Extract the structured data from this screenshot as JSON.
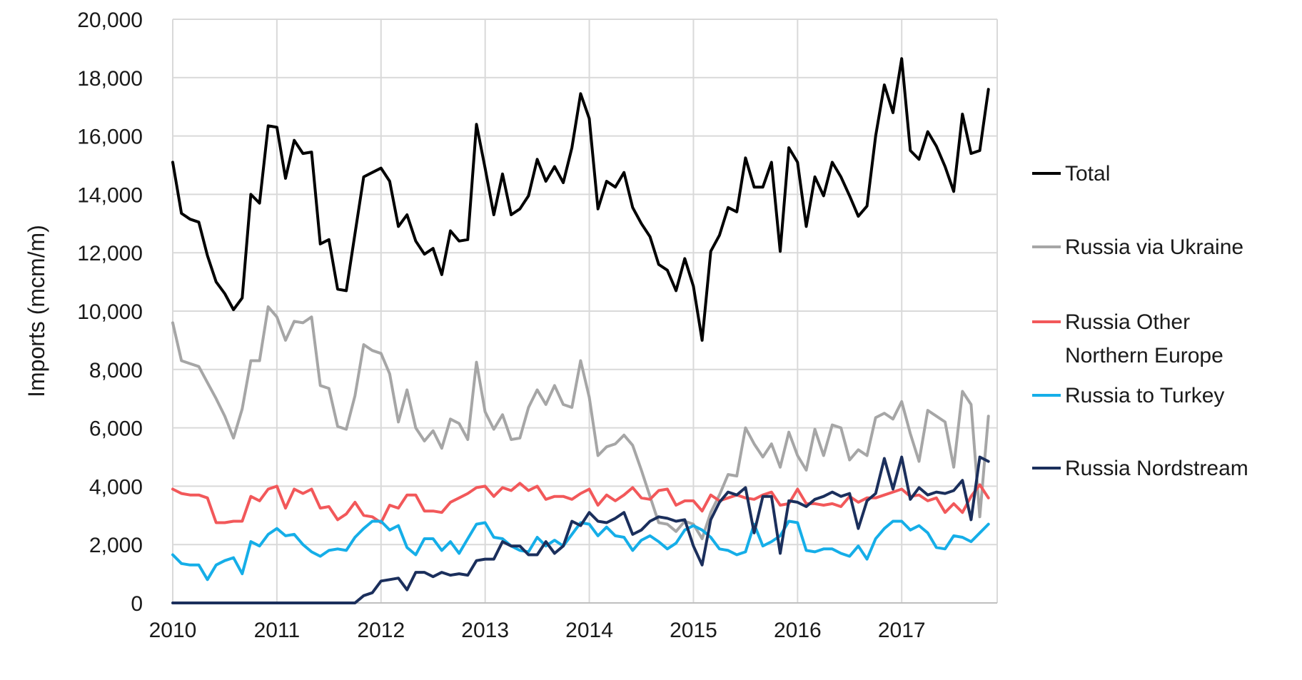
{
  "chart_data": {
    "type": "line",
    "title": "",
    "xlabel": "",
    "ylabel": "Imports (mcm/m)",
    "ylim": [
      0,
      20000
    ],
    "xlim": [
      2010,
      2017.917
    ],
    "grid": true,
    "legend_position": "right",
    "x_start": 2010,
    "x_step_years": 0.08333,
    "yticks": [
      0,
      2000,
      4000,
      6000,
      8000,
      10000,
      12000,
      14000,
      16000,
      18000,
      20000
    ],
    "ytick_labels": [
      "0",
      "2,000",
      "4,000",
      "6,000",
      "8,000",
      "10,000",
      "12,000",
      "14,000",
      "16,000",
      "18,000",
      "20,000"
    ],
    "xticks": [
      2010,
      2011,
      2012,
      2013,
      2014,
      2015,
      2016,
      2017
    ],
    "xtick_labels": [
      "2010",
      "2011",
      "2012",
      "2013",
      "2014",
      "2015",
      "2016",
      "2017"
    ],
    "series": [
      {
        "name": "Total",
        "legend_label": [
          "Total"
        ],
        "color": "#000000",
        "values": [
          15100,
          13350,
          13150,
          13050,
          11900,
          11000,
          10600,
          10050,
          10450,
          14000,
          13700,
          16350,
          16300,
          14550,
          15850,
          15400,
          15450,
          12300,
          12450,
          10750,
          10700,
          12650,
          14600,
          14750,
          14900,
          14450,
          12900,
          13300,
          12400,
          11950,
          12150,
          11250,
          12750,
          12400,
          12450,
          16400,
          14900,
          13300,
          14700,
          13300,
          13500,
          13950,
          15200,
          14450,
          14950,
          14400,
          15600,
          17450,
          16600,
          13500,
          14450,
          14250,
          14750,
          13550,
          13000,
          12550,
          11600,
          11400,
          10700,
          11800,
          10850,
          9000,
          12050,
          12600,
          13550,
          13400,
          15250,
          14250,
          14250,
          15100,
          12050,
          15600,
          15100,
          12900,
          14600,
          13950,
          15100,
          14600,
          13950,
          13250,
          13600,
          16000,
          17750,
          16800,
          18650,
          15500,
          15200,
          16150,
          15650,
          14950,
          14100,
          16750,
          15400,
          15500,
          17600
        ]
      },
      {
        "name": "Russia via Ukraine",
        "legend_label": [
          "Russia via Ukraine"
        ],
        "color": "#a6a6a6",
        "values": [
          9600,
          8300,
          8200,
          8100,
          7550,
          7000,
          6400,
          5650,
          6650,
          8300,
          8300,
          10150,
          9800,
          9000,
          9650,
          9600,
          9800,
          7450,
          7350,
          6050,
          5950,
          7100,
          8850,
          8650,
          8550,
          7850,
          6200,
          7300,
          6000,
          5550,
          5900,
          5300,
          6300,
          6150,
          5600,
          8250,
          6550,
          5950,
          6450,
          5600,
          5650,
          6700,
          7300,
          6800,
          7450,
          6800,
          6700,
          8300,
          7050,
          5050,
          5350,
          5450,
          5750,
          5400,
          4550,
          3650,
          2750,
          2700,
          2450,
          2800,
          2700,
          2200,
          3100,
          3700,
          4400,
          4350,
          6000,
          5450,
          5000,
          5450,
          4650,
          5850,
          5050,
          4550,
          5950,
          5050,
          6100,
          6000,
          4900,
          5250,
          5050,
          6350,
          6500,
          6300,
          6900,
          5800,
          4850,
          6600,
          6400,
          6200,
          4650,
          7250,
          6800,
          2950,
          6400
        ]
      },
      {
        "name": "Russia Other Northern Europe",
        "legend_label": [
          "Russia Other",
          "Northern Europe"
        ],
        "color": "#f2585a",
        "values": [
          3900,
          3750,
          3700,
          3700,
          3600,
          2750,
          2750,
          2800,
          2800,
          3650,
          3500,
          3900,
          4000,
          3250,
          3900,
          3750,
          3900,
          3250,
          3300,
          2850,
          3050,
          3450,
          3000,
          2950,
          2750,
          3350,
          3250,
          3700,
          3700,
          3150,
          3150,
          3100,
          3450,
          3600,
          3750,
          3950,
          4000,
          3650,
          3950,
          3850,
          4100,
          3850,
          4000,
          3550,
          3650,
          3650,
          3550,
          3750,
          3900,
          3350,
          3700,
          3500,
          3700,
          3950,
          3600,
          3550,
          3850,
          3900,
          3350,
          3500,
          3500,
          3150,
          3700,
          3500,
          3600,
          3700,
          3600,
          3550,
          3700,
          3800,
          3350,
          3400,
          3900,
          3400,
          3400,
          3350,
          3400,
          3300,
          3650,
          3450,
          3600,
          3600,
          3700,
          3800,
          3900,
          3650,
          3700,
          3500,
          3600,
          3100,
          3400,
          3100,
          3650,
          4050,
          3600
        ]
      },
      {
        "name": "Russia to Turkey",
        "legend_label": [
          "Russia to Turkey"
        ],
        "color": "#15aee8",
        "values": [
          1650,
          1350,
          1300,
          1300,
          800,
          1300,
          1450,
          1550,
          1000,
          2100,
          1950,
          2350,
          2550,
          2300,
          2350,
          2000,
          1750,
          1600,
          1800,
          1850,
          1800,
          2250,
          2550,
          2800,
          2800,
          2500,
          2650,
          1900,
          1650,
          2200,
          2200,
          1800,
          2100,
          1700,
          2200,
          2700,
          2750,
          2250,
          2200,
          1950,
          1800,
          1750,
          2250,
          1950,
          2150,
          1950,
          2350,
          2750,
          2700,
          2300,
          2600,
          2300,
          2250,
          1800,
          2150,
          2300,
          2100,
          1850,
          2050,
          2500,
          2650,
          2500,
          2250,
          1850,
          1800,
          1650,
          1750,
          2700,
          1950,
          2100,
          2300,
          2800,
          2750,
          1800,
          1750,
          1850,
          1850,
          1700,
          1600,
          1950,
          1500,
          2200,
          2550,
          2800,
          2800,
          2500,
          2650,
          2400,
          1900,
          1850,
          2300,
          2250,
          2100,
          2400,
          2700
        ]
      },
      {
        "name": "Russia Nordstream",
        "legend_label": [
          "Russia Nordstream"
        ],
        "color": "#1b2f5c",
        "values": [
          0,
          0,
          0,
          0,
          0,
          0,
          0,
          0,
          0,
          0,
          0,
          0,
          0,
          0,
          0,
          0,
          0,
          0,
          0,
          0,
          0,
          0,
          250,
          350,
          750,
          800,
          850,
          450,
          1050,
          1050,
          900,
          1050,
          950,
          1000,
          950,
          1450,
          1500,
          1500,
          2100,
          1950,
          1950,
          1650,
          1650,
          2100,
          1700,
          1950,
          2800,
          2650,
          3100,
          2800,
          2750,
          2900,
          3100,
          2350,
          2500,
          2800,
          2950,
          2900,
          2800,
          2850,
          1950,
          1300,
          2850,
          3450,
          3800,
          3700,
          3950,
          2400,
          3650,
          3650,
          1700,
          3500,
          3450,
          3300,
          3550,
          3650,
          3800,
          3650,
          3750,
          2550,
          3500,
          3750,
          4950,
          3900,
          5000,
          3550,
          3950,
          3700,
          3800,
          3750,
          3850,
          4200,
          2850,
          5000,
          4850
        ]
      }
    ]
  }
}
